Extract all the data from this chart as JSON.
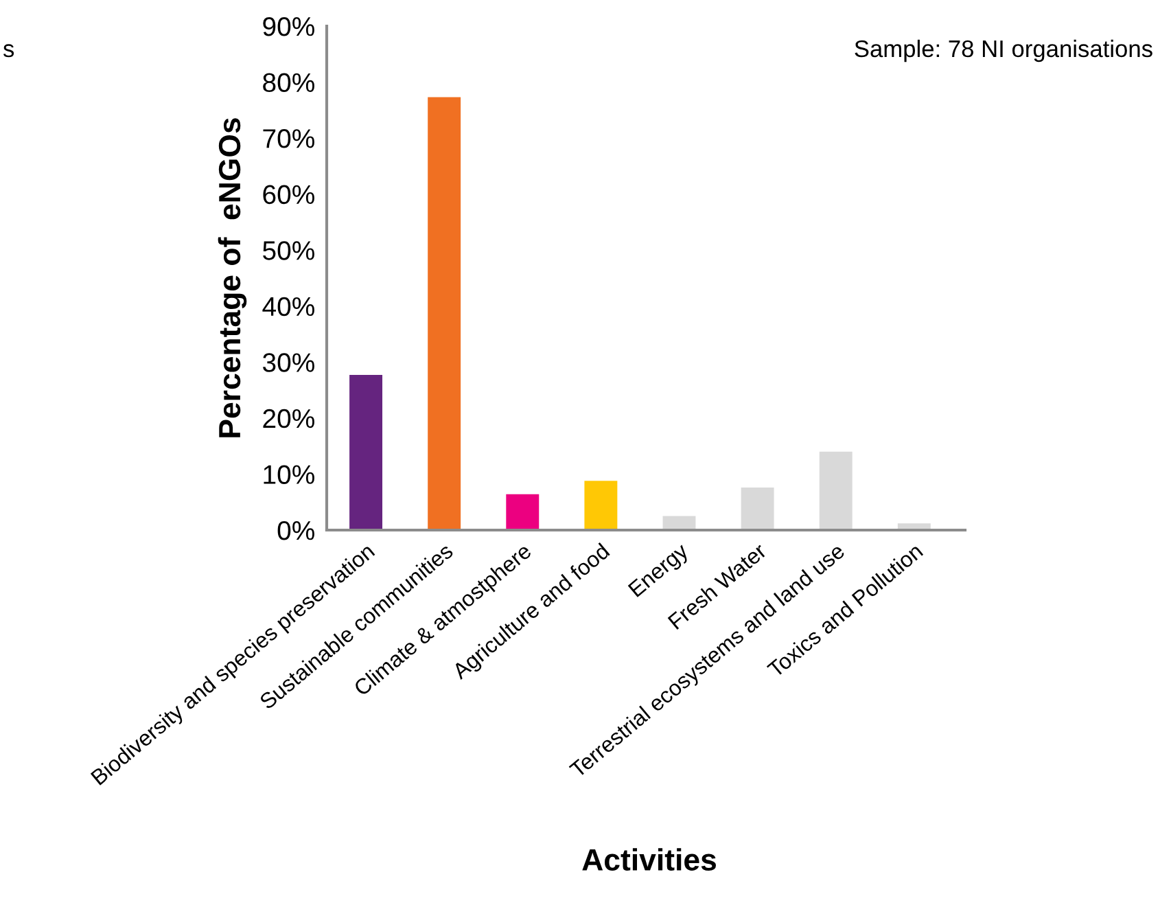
{
  "chart_data": {
    "type": "bar",
    "categories": [
      "Biodiversity and species preservation",
      "Sustainable communities",
      "Climate & atmostphere",
      "Agriculture and food",
      "Energy",
      "Fresh Water",
      "Terrestrial ecosystems and land use",
      "Toxics and Pollution"
    ],
    "values": [
      27.7,
      77.3,
      6.4,
      8.8,
      2.5,
      7.6,
      14.0,
      1.2
    ],
    "colors": [
      "#65247f",
      "#f07022",
      "#ec0080",
      "#ffc805",
      "#d9d9d9",
      "#d9d9d9",
      "#d9d9d9",
      "#d9d9d9"
    ],
    "ylim": [
      0,
      90
    ],
    "yticks": [
      {
        "value": 0,
        "label": "0%"
      },
      {
        "value": 10,
        "label": "10%"
      },
      {
        "value": 20,
        "label": "20%"
      },
      {
        "value": 30,
        "label": "30%"
      },
      {
        "value": 40,
        "label": "40%"
      },
      {
        "value": 50,
        "label": "50%"
      },
      {
        "value": 60,
        "label": "60%"
      },
      {
        "value": 70,
        "label": "70%"
      },
      {
        "value": 80,
        "label": "80%"
      },
      {
        "value": 90,
        "label": "90%"
      }
    ],
    "ylabel": "Percentage of  eNGOs",
    "xlabel": "Activities",
    "annotations": [
      "Sample: 78 NI organisations",
      "s"
    ],
    "grid": false,
    "legend": false
  }
}
